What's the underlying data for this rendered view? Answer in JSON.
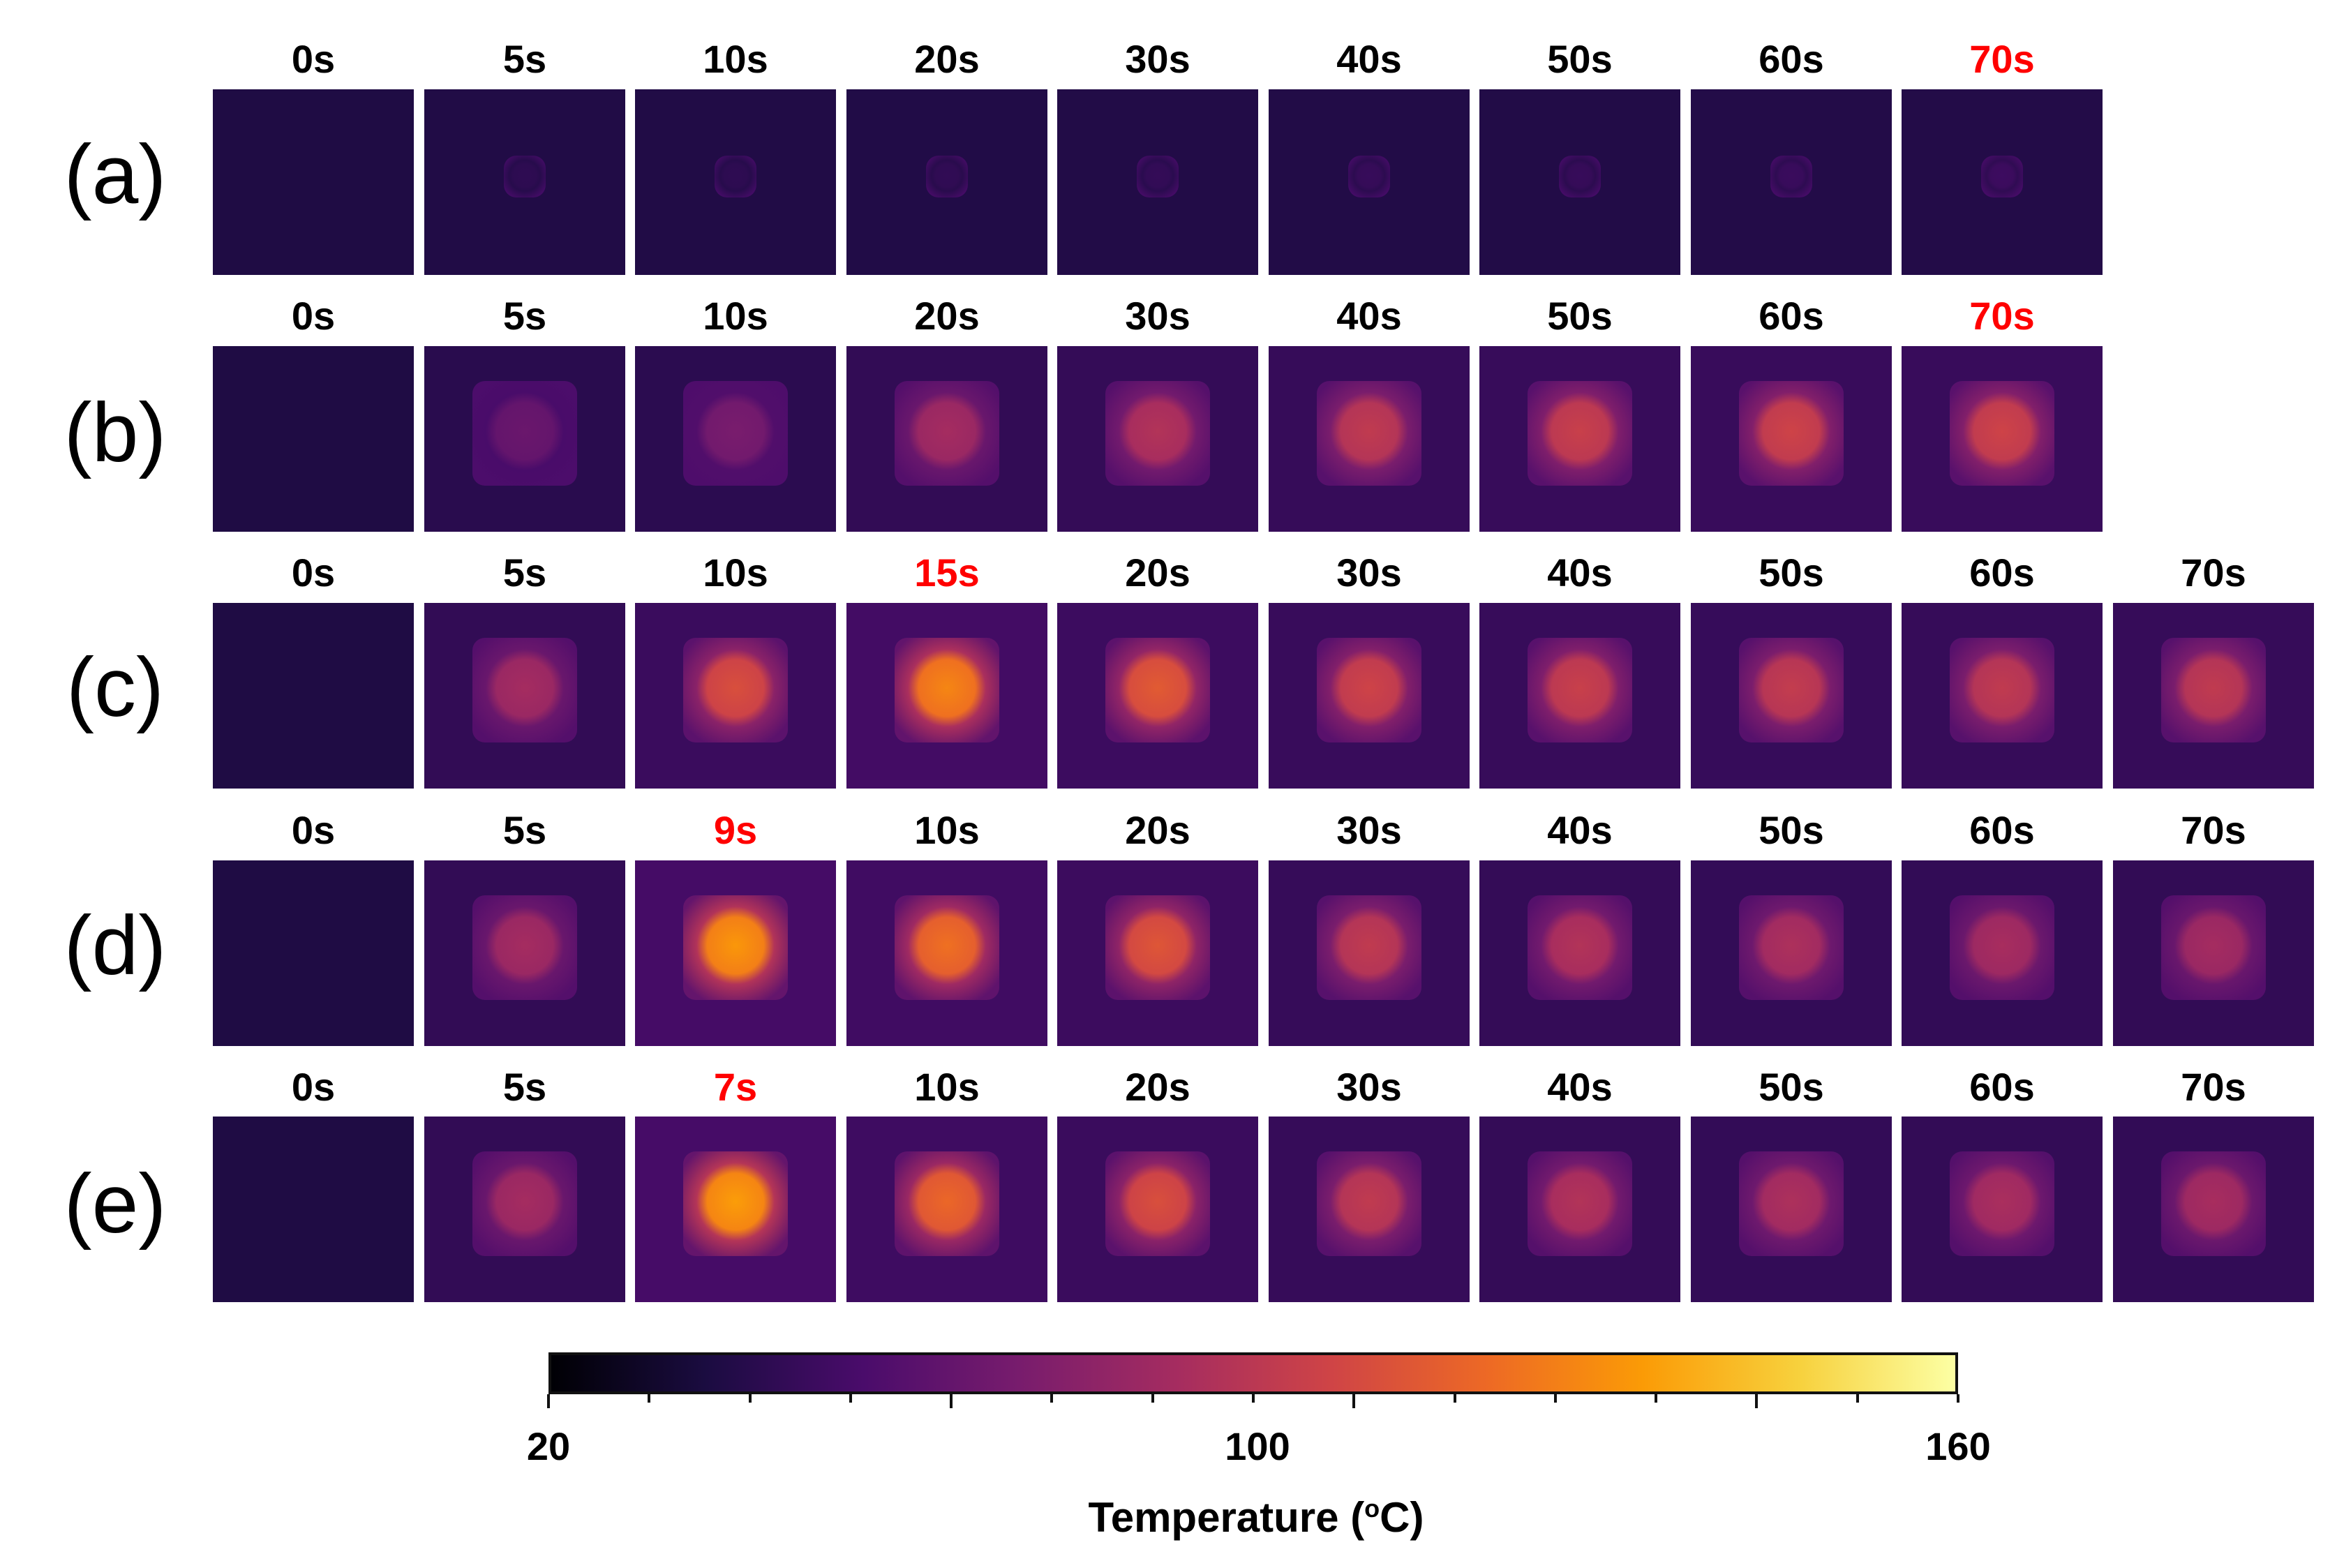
{
  "rows": [
    {
      "label": "(a)",
      "times": [
        "0s",
        "5s",
        "10s",
        "20s",
        "30s",
        "40s",
        "50s",
        "60s",
        "70s"
      ],
      "highlight": "70s"
    },
    {
      "label": "(b)",
      "times": [
        "0s",
        "5s",
        "10s",
        "20s",
        "30s",
        "40s",
        "50s",
        "60s",
        "70s"
      ],
      "highlight": "70s"
    },
    {
      "label": "(c)",
      "times": [
        "0s",
        "5s",
        "10s",
        "15s",
        "20s",
        "30s",
        "40s",
        "50s",
        "60s",
        "70s"
      ],
      "highlight": "15s"
    },
    {
      "label": "(d)",
      "times": [
        "0s",
        "5s",
        "9s",
        "10s",
        "20s",
        "30s",
        "40s",
        "50s",
        "60s",
        "70s"
      ],
      "highlight": "9s"
    },
    {
      "label": "(e)",
      "times": [
        "0s",
        "5s",
        "7s",
        "10s",
        "20s",
        "30s",
        "40s",
        "50s",
        "60s",
        "70s"
      ],
      "highlight": "7s"
    }
  ],
  "colorbar": {
    "min_label": "20",
    "mid_label": "100",
    "max_label": "160",
    "min": 20,
    "max": 160,
    "title": "Temperature (",
    "title_sup": "o",
    "title_unit": "C)",
    "colors": [
      "#000004",
      "#1b0c41",
      "#4a0c6b",
      "#781c6d",
      "#a52c60",
      "#cf4446",
      "#ed6925",
      "#fb9b06",
      "#f7d13d",
      "#fcffa4"
    ]
  },
  "highlight_color": "#ff0000"
}
